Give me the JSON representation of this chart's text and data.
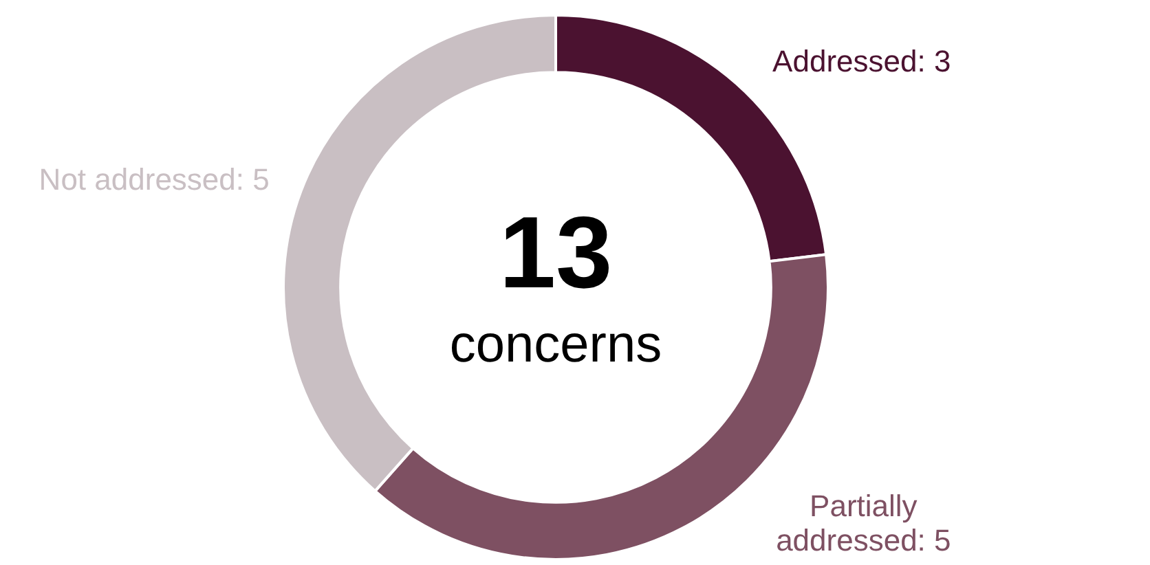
{
  "chart_data": {
    "type": "donut",
    "categories": [
      "Addressed",
      "Partially addressed",
      "Not addressed"
    ],
    "values": [
      3,
      5,
      5
    ],
    "value_labels": [
      ": 3",
      ": 5",
      ": 5"
    ],
    "colors": [
      "#4b1230",
      "#7e5062",
      "#c9bfc3"
    ],
    "annotations": [
      "13",
      "concerns"
    ]
  }
}
